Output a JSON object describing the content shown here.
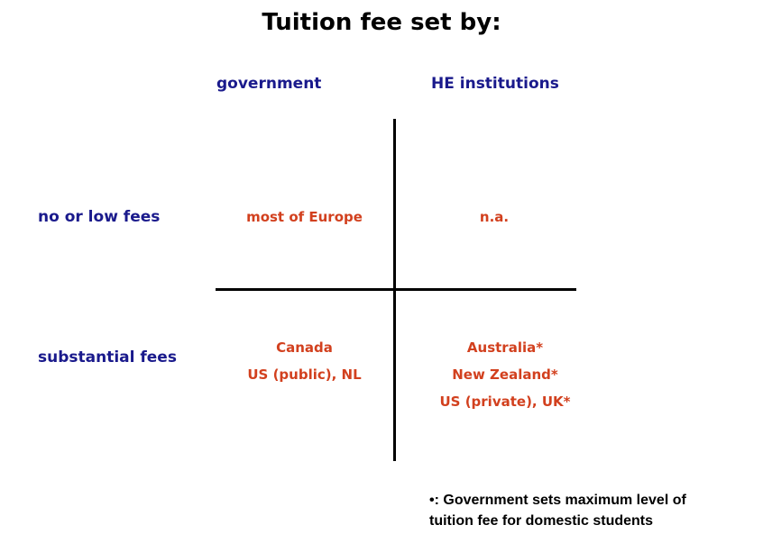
{
  "title": "Tuition fee set by:",
  "columns": {
    "government": "government",
    "institutions": "HE institutions"
  },
  "rows": {
    "low": "no or low fees",
    "substantial": "substantial fees"
  },
  "cells": {
    "gov_low": [
      "most of Europe"
    ],
    "inst_low": [
      "n.a."
    ],
    "gov_substantial": [
      "Canada",
      "US (public), NL"
    ],
    "inst_substantial": [
      "Australia*",
      "New Zealand*",
      "US (private), UK*"
    ]
  },
  "footnote": {
    "line1": "•: Government sets maximum level of",
    "line2": "tuition fee for domestic students"
  },
  "colors": {
    "header_blue": "#1a1a8c",
    "cell_red": "#d2401e",
    "axis": "#000000"
  }
}
